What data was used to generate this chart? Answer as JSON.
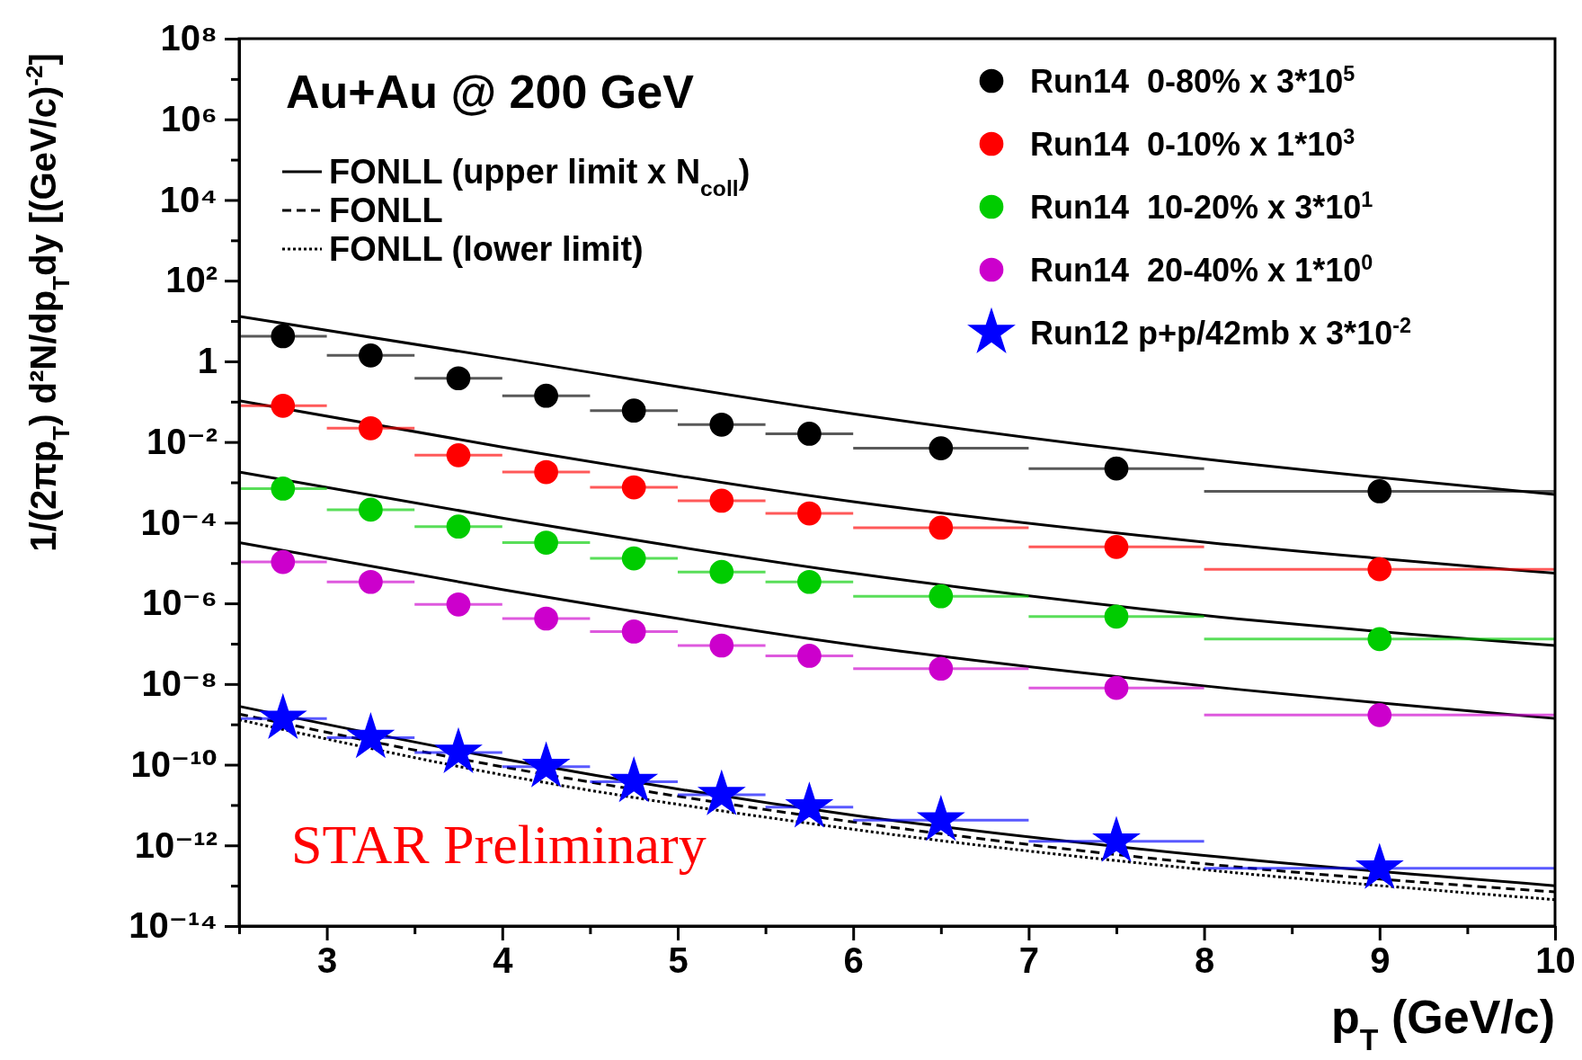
{
  "chart_data": {
    "type": "scatter",
    "title": "Au+Au @ 200 GeV",
    "xlabel": "p$_{T}$ (GeV/c)",
    "ylabel": "1/(2πp$_{T}$) d²N/dp$_{T}$dy [(GeV/c)$^{-2}$]",
    "annotations": [
      "STAR Preliminary"
    ],
    "x": [
      2.75,
      3.25,
      3.75,
      4.25,
      4.75,
      5.25,
      5.75,
      6.5,
      7.5,
      9
    ],
    "log": true,
    "legend": "top",
    "xlim": [
      2.5,
      10
    ],
    "xticks": [
      {
        "value": 2.5,
        "label": null
      },
      3,
      {
        "value": 3.5,
        "label": null
      },
      4,
      {
        "value": 4.5,
        "label": null
      },
      5,
      {
        "value": 5.5,
        "label": null
      },
      6,
      {
        "value": 6.5,
        "label": null
      },
      7,
      {
        "value": 7.5,
        "label": null
      },
      8,
      {
        "value": 8.5,
        "label": null
      },
      9,
      {
        "value": 9.5,
        "label": null
      },
      10
    ],
    "ylim": [
      1e-14,
      100000000.0
    ],
    "yticks": [
      {
        "value": 1e-14,
        "label": "10⁻¹⁴"
      },
      {
        "value": 1e-13,
        "label": null
      },
      {
        "value": 1e-12,
        "label": "10⁻¹²"
      },
      {
        "value": 1e-11,
        "label": null
      },
      {
        "value": 1e-10,
        "label": "10⁻¹⁰"
      },
      {
        "value": 1e-09,
        "label": null
      },
      {
        "value": 1e-08,
        "label": "10⁻⁸"
      },
      {
        "value": 1e-07,
        "label": null
      },
      {
        "value": 1e-06,
        "label": "10⁻⁶"
      },
      {
        "value": 1e-05,
        "label": null
      },
      {
        "value": 0.0001,
        "label": "10⁻⁴"
      },
      {
        "value": 0.001,
        "label": null
      },
      {
        "value": 0.01,
        "label": "10⁻²"
      },
      {
        "value": 0.1,
        "label": null
      },
      1,
      {
        "value": 10,
        "label": null
      },
      {
        "value": 100,
        "label": "10²"
      },
      {
        "value": 1000,
        "label": null
      },
      {
        "value": 10000.0,
        "label": "10⁴"
      },
      {
        "value": 100000.0,
        "label": null
      },
      {
        "value": 1000000.0,
        "label": "10⁶"
      },
      {
        "value": 10000000.0,
        "label": null
      },
      {
        "value": 100000000.0,
        "label": "10⁸"
      }
    ],
    "series": [
      {
        "name": "Run14  0-80% x 3*10$^{5}$",
        "color": "#000000",
        "marker": "circle",
        "values": [
          4.2,
          1.4,
          0.38,
          0.14,
          0.06,
          0.027,
          0.016,
          0.007,
          0.0022,
          0.0006
        ],
        "xerrors": [
          0.25,
          0.25,
          0.25,
          0.25,
          0.25,
          0.25,
          0.25,
          0.5,
          0.5,
          1
        ]
      },
      {
        "name": "Run14  0-10% x 1*10$^{3}$",
        "color": "#ff0000",
        "marker": "circle",
        "values": [
          0.079,
          0.022,
          0.0047,
          0.0018,
          0.00075,
          0.00035,
          0.00017,
          7.5e-05,
          2.5e-05,
          7e-06
        ],
        "xerrors": [
          0.25,
          0.25,
          0.25,
          0.25,
          0.25,
          0.25,
          0.25,
          0.5,
          0.5,
          1
        ]
      },
      {
        "name": "Run14  10-20% x 3*10$^{1}$",
        "color": "#00cc00",
        "marker": "circle",
        "values": [
          0.0007,
          0.00021,
          8e-05,
          3.2e-05,
          1.3e-05,
          6e-06,
          3.4e-06,
          1.5e-06,
          4.7e-07,
          1.3e-07
        ],
        "xerrors": [
          0.25,
          0.25,
          0.25,
          0.25,
          0.25,
          0.25,
          0.25,
          0.5,
          0.5,
          1
        ]
      },
      {
        "name": "Run14  20-40% x 1*10$^{0}$",
        "color": "#cc00cc",
        "marker": "circle",
        "values": [
          1.06e-05,
          3.4e-06,
          9.4e-07,
          4.2e-07,
          2e-07,
          9e-08,
          5e-08,
          2.4e-08,
          8e-09,
          1.7e-09
        ],
        "xerrors": [
          0.25,
          0.25,
          0.25,
          0.25,
          0.25,
          0.25,
          0.25,
          0.5,
          0.5,
          1
        ]
      },
      {
        "name": "Run12 p+p/42mb x 3*10$^{-2}$",
        "color": "#0000ff",
        "marker": "star",
        "values": [
          1.4e-09,
          4.7e-10,
          2e-10,
          8.9e-11,
          3.8e-11,
          1.8e-11,
          8.9e-12,
          4.2e-12,
          1.26e-12,
          2.7e-13
        ],
        "xerrors": [
          0.25,
          0.25,
          0.25,
          0.25,
          0.25,
          0.25,
          0.25,
          0.5,
          0.5,
          1
        ]
      },
      {
        "name": "FONLL (upper limit x N$_{coll}$)",
        "type": "line",
        "color": "#000000",
        "line_style": "solid",
        "marker": "none",
        "x": [
          2.5,
          4,
          6,
          8,
          10
        ],
        "values": [
          13,
          1.2,
          0.05,
          0.0038,
          0.0005
        ]
      },
      {
        "type": "line",
        "color": "#000000",
        "line_style": "solid",
        "marker": "none",
        "x": [
          2.5,
          4,
          6,
          8,
          10
        ],
        "values": [
          0.106,
          0.0075,
          0.00033,
          3.3e-05,
          5.6e-06
        ]
      },
      {
        "type": "line",
        "color": "#000000",
        "line_style": "solid",
        "marker": "none",
        "x": [
          2.5,
          4,
          6,
          8,
          10
        ],
        "values": [
          0.0018,
          0.00013,
          5.6e-06,
          5e-07,
          9e-08
        ]
      },
      {
        "type": "line",
        "color": "#000000",
        "line_style": "solid",
        "marker": "none",
        "x": [
          2.5,
          4,
          6,
          8,
          10
        ],
        "values": [
          3.2e-05,
          2.2e-06,
          9.4e-08,
          9e-09,
          1.4e-09
        ]
      },
      {
        "type": "line",
        "color": "#000000",
        "line_style": "solid",
        "marker": "none",
        "x": [
          2.5,
          4,
          6,
          8,
          10
        ],
        "values": [
          2.8e-09,
          1.4e-10,
          5.6e-12,
          5.6e-13,
          1e-13
        ]
      },
      {
        "name": "FONLL",
        "type": "line",
        "color": "#000000",
        "line_style": "dashed",
        "marker": "none",
        "x": [
          2.5,
          4,
          6,
          8,
          10
        ],
        "values": [
          1.8e-09,
          8.9e-11,
          3.8e-12,
          3.5e-13,
          7e-14
        ]
      },
      {
        "name": "FONLL (lower limit)",
        "type": "line",
        "color": "#000000",
        "line_style": "dotted",
        "marker": "none",
        "x": [
          2.5,
          4,
          6,
          8,
          10
        ],
        "values": [
          1.3e-09,
          5.6e-11,
          2.5e-12,
          2.5e-13,
          4.5e-14
        ]
      }
    ]
  }
}
